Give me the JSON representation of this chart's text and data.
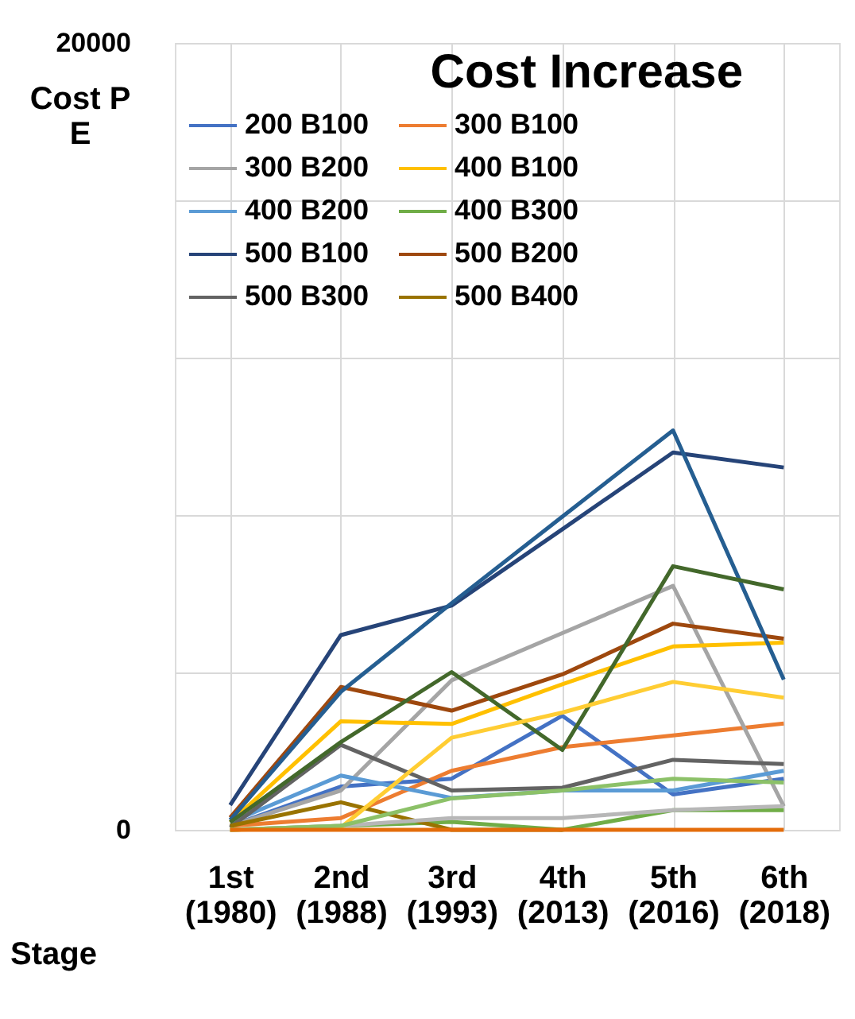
{
  "chart_data": {
    "type": "line",
    "title": "Cost Increase",
    "xlabel": "Stage",
    "ylabel": "Cost P\nE",
    "categories": [
      "1st\n(1980)",
      "2nd\n(1988)",
      "3rd\n(1993)",
      "4th\n(2013)",
      "5th\n(2016)",
      "6th\n(2018)"
    ],
    "ylim": [
      0,
      20000
    ],
    "yticks": [
      0,
      {
        "value": 4000,
        "label": null
      },
      {
        "value": 8000,
        "label": null
      },
      {
        "value": 12000,
        "label": null
      },
      {
        "value": 16000,
        "label": null
      },
      20000
    ],
    "grid": true,
    "legend": "top",
    "marker": "none",
    "line_style": "solid",
    "series": [
      {
        "name": "200 B100",
        "color": "#4472c4",
        "values": [
          100,
          1100,
          1300,
          2900,
          900,
          1300
        ]
      },
      {
        "name": "300 B100",
        "color": "#ed7d31",
        "values": [
          100,
          300,
          1500,
          2100,
          2400,
          2700
        ]
      },
      {
        "name": "300 B200",
        "color": "#a5a5a5",
        "values": [
          100,
          1000,
          3800,
          5000,
          6200,
          600
        ]
      },
      {
        "name": "400 B100",
        "color": "#ffc000",
        "values": [
          190,
          2760,
          2690,
          3700,
          4660,
          4760
        ]
      },
      {
        "name": "400 B200",
        "color": "#5b9bd5",
        "values": [
          190,
          1380,
          810,
          1000,
          1000,
          1500
        ]
      },
      {
        "name": "400 B300",
        "color": "#70ad47",
        "values": [
          0,
          100,
          200,
          0,
          500,
          500
        ]
      },
      {
        "name": "500 B100",
        "color": "#264478",
        "values": [
          630,
          4950,
          5700,
          7640,
          9590,
          9210
        ]
      },
      {
        "name": "500 B200",
        "color": "#9e480e",
        "values": [
          310,
          3630,
          3030,
          3950,
          5240,
          4860
        ]
      },
      {
        "name": "500 B300",
        "color": "#636363",
        "values": [
          60,
          2160,
          1000,
          1070,
          1780,
          1670
        ]
      },
      {
        "name": "500 B400",
        "color": "#997300",
        "values": [
          100,
          700,
          0,
          0,
          null,
          null
        ]
      },
      {
        "color": "#255e91",
        "values": [
          250,
          3510,
          5760,
          7960,
          10150,
          3820
        ]
      },
      {
        "color": "#43682b",
        "values": [
          190,
          2230,
          4010,
          2030,
          6700,
          6110
        ]
      },
      {
        "color": "#b7b7b7",
        "values": [
          0,
          100,
          300,
          300,
          500,
          600
        ]
      },
      {
        "color": "#ffcd33",
        "values": [
          0,
          60,
          2340,
          2980,
          3760,
          3360
        ]
      },
      {
        "color": "#8cc168",
        "values": [
          0,
          100,
          800,
          1000,
          1300,
          1200
        ]
      },
      {
        "color": "#e46c0a",
        "values": [
          0,
          0,
          0,
          0,
          0,
          0
        ]
      }
    ]
  }
}
